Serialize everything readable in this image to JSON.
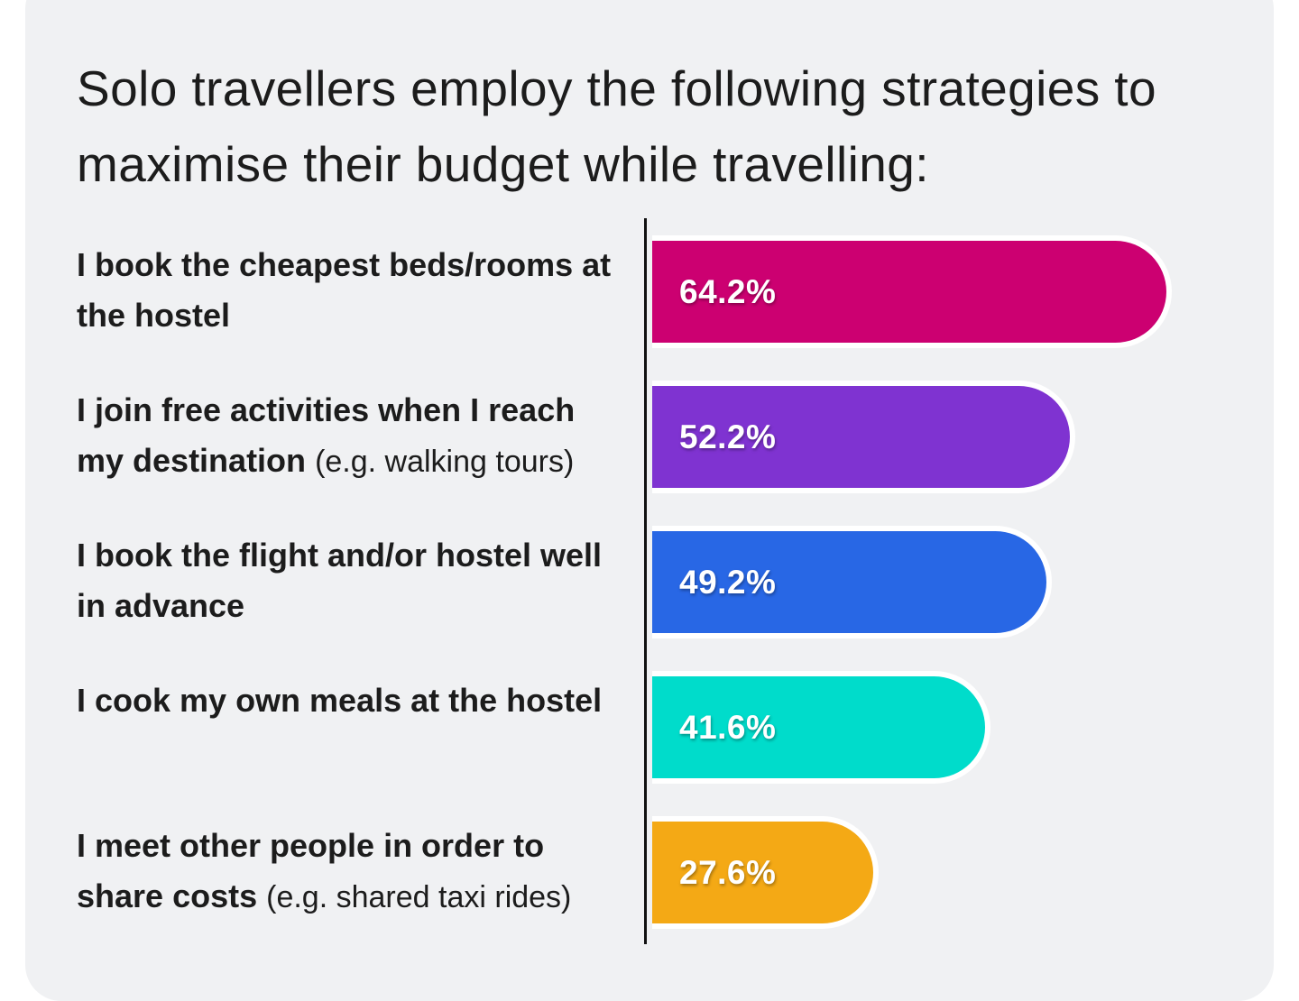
{
  "chart_data": {
    "type": "bar",
    "orientation": "horizontal",
    "title": "Solo travellers employ the following strategies to maximise their budget while travelling:",
    "categories": [
      {
        "main": "I book the cheapest beds/rooms at the hostel",
        "note": ""
      },
      {
        "main": "I join free activities when I reach my destination",
        "note": "(e.g. walking tours)"
      },
      {
        "main": "I book the flight and/or hostel well in advance",
        "note": ""
      },
      {
        "main": "I cook my own meals at the hostel",
        "note": ""
      },
      {
        "main": "I meet other people in order to share costs",
        "note": "(e.g. shared taxi rides)"
      }
    ],
    "values": [
      64.2,
      52.2,
      49.2,
      41.6,
      27.6
    ],
    "value_labels": [
      "64.2%",
      "52.2%",
      "49.2%",
      "41.6%",
      "27.6%"
    ],
    "colors": [
      "#cc0071",
      "#7f33d1",
      "#2867e5",
      "#00dccb",
      "#f4a915"
    ],
    "unit": "%",
    "grid": false,
    "legend": "none"
  }
}
